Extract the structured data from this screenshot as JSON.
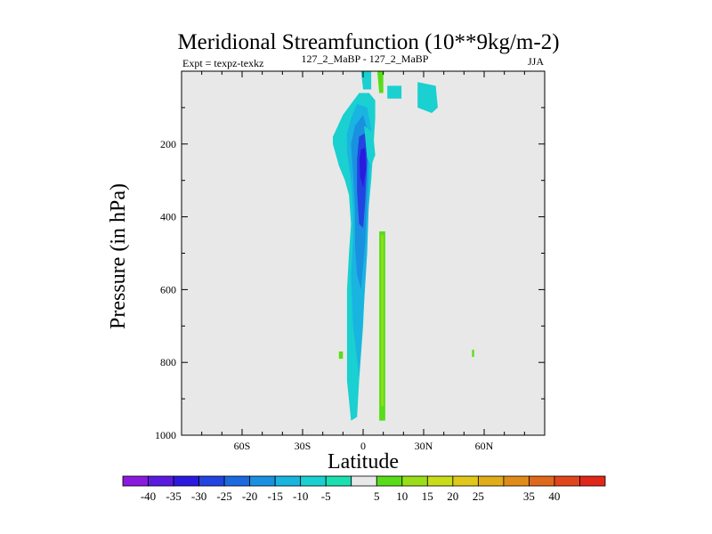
{
  "chart_data": {
    "type": "heatmap",
    "title": "Meridional Streamfunction (10**9kg/m-2)",
    "subtitle_left": "Expt = texpz-texkz",
    "subtitle_center": "127_2_MaBP - 127_2_MaBP",
    "subtitle_right": "JJA",
    "xlabel": "Latitude",
    "ylabel": "Pressure (in hPa)",
    "xlim": [
      -90,
      90
    ],
    "ylim": [
      1000,
      0
    ],
    "x_ticks": [
      {
        "value": -60,
        "label": "60S"
      },
      {
        "value": -30,
        "label": "30S"
      },
      {
        "value": 0,
        "label": "0"
      },
      {
        "value": 30,
        "label": "30N"
      },
      {
        "value": 60,
        "label": "60N"
      }
    ],
    "y_ticks": [
      {
        "value": 200,
        "label": "200"
      },
      {
        "value": 400,
        "label": "400"
      },
      {
        "value": 600,
        "label": "600"
      },
      {
        "value": 800,
        "label": "800"
      },
      {
        "value": 1000,
        "label": "1000"
      }
    ],
    "background_color": "#e8e8e8",
    "colorbar": {
      "labels": [
        "-40",
        "-35",
        "-30",
        "-25",
        "-20",
        "-15",
        "-10",
        "-5",
        "5",
        "10",
        "15",
        "20",
        "25",
        "35",
        "40"
      ],
      "colors": [
        "#8a1ae0",
        "#5a1ae0",
        "#2a1ae0",
        "#2244e0",
        "#1a6ae0",
        "#1a90e0",
        "#1ab4e0",
        "#1ad0d0",
        "#1ae0b0",
        "#e8e8e8",
        "#58dc1a",
        "#9ade1a",
        "#c8dc1a",
        "#e0c81a",
        "#e0ac1a",
        "#e08a1a",
        "#e0681a",
        "#e0461a",
        "#e0281a"
      ]
    },
    "regions": [
      {
        "level": "-10",
        "color": "#1ad0d0",
        "points": [
          [
            -15,
            200
          ],
          [
            -15,
            180
          ],
          [
            -10,
            120
          ],
          [
            -6,
            90
          ],
          [
            -2,
            60
          ],
          [
            3,
            60
          ],
          [
            6,
            80
          ],
          [
            6,
            130
          ],
          [
            4,
            300
          ],
          [
            2,
            420
          ],
          [
            1,
            560
          ],
          [
            0,
            700
          ],
          [
            -2,
            850
          ],
          [
            -3,
            950
          ],
          [
            -6,
            960
          ],
          [
            -8,
            850
          ],
          [
            -8,
            600
          ],
          [
            -7,
            500
          ],
          [
            -6,
            420
          ],
          [
            -7,
            340
          ],
          [
            -9,
            300
          ],
          [
            -12,
            260
          ]
        ]
      },
      {
        "level": "-15",
        "color": "#1ab4e0",
        "points": [
          [
            -6,
            130
          ],
          [
            -3,
            90
          ],
          [
            2,
            100
          ],
          [
            4,
            160
          ],
          [
            3,
            330
          ],
          [
            2,
            500
          ],
          [
            0,
            680
          ],
          [
            -2,
            840
          ],
          [
            -5,
            700
          ],
          [
            -6,
            560
          ],
          [
            -5,
            460
          ],
          [
            -5,
            380
          ],
          [
            -6,
            300
          ],
          [
            -8,
            220
          ],
          [
            -8,
            170
          ]
        ]
      },
      {
        "level": "-20",
        "color": "#1a90e0",
        "points": [
          [
            -4,
            150
          ],
          [
            0,
            120
          ],
          [
            3,
            180
          ],
          [
            2,
            340
          ],
          [
            1,
            470
          ],
          [
            -1,
            600
          ],
          [
            -3,
            560
          ],
          [
            -4,
            480
          ],
          [
            -4,
            380
          ],
          [
            -5,
            280
          ],
          [
            -6,
            200
          ]
        ]
      },
      {
        "level": "-25",
        "color": "#2244e0",
        "points": [
          [
            -2,
            180
          ],
          [
            1,
            170
          ],
          [
            2,
            240
          ],
          [
            1,
            360
          ],
          [
            0,
            430
          ],
          [
            -2,
            420
          ],
          [
            -3,
            330
          ],
          [
            -3,
            240
          ]
        ]
      },
      {
        "level": "-30",
        "color": "#2a1ae0",
        "points": [
          [
            -1,
            215
          ],
          [
            1,
            210
          ],
          [
            1.5,
            270
          ],
          [
            0,
            320
          ],
          [
            -1.5,
            290
          ],
          [
            -1.8,
            240
          ]
        ]
      },
      {
        "level": "-10",
        "color": "#1ad0d0",
        "points": [
          [
            -1,
            0
          ],
          [
            4,
            0
          ],
          [
            4,
            50
          ],
          [
            0,
            50
          ]
        ]
      },
      {
        "level": "5",
        "color": "#58dc1a",
        "points": [
          [
            7,
            0
          ],
          [
            10,
            0
          ],
          [
            10,
            60
          ],
          [
            8,
            60
          ]
        ]
      },
      {
        "level": "5",
        "color": "#58dc1a",
        "points": [
          [
            8,
            440
          ],
          [
            11,
            440
          ],
          [
            11,
            960
          ],
          [
            8,
            960
          ]
        ]
      },
      {
        "level": "10",
        "color": "#9ade1a",
        "points": [
          [
            9,
            450
          ],
          [
            10,
            450
          ],
          [
            10,
            920
          ],
          [
            9,
            920
          ]
        ]
      },
      {
        "level": "-10",
        "color": "#1ad0d0",
        "points": [
          [
            27,
            30
          ],
          [
            36,
            40
          ],
          [
            37,
            100
          ],
          [
            34,
            115
          ],
          [
            27,
            100
          ]
        ]
      },
      {
        "level": "-10",
        "color": "#1ad0d0",
        "points": [
          [
            12,
            40
          ],
          [
            19,
            40
          ],
          [
            19,
            75
          ],
          [
            12,
            75
          ]
        ]
      },
      {
        "level": "-10",
        "color": "#1ad0d0",
        "points": [
          [
            0.5,
            150
          ],
          [
            5,
            170
          ],
          [
            6,
            230
          ],
          [
            4,
            260
          ],
          [
            2,
            240
          ]
        ]
      },
      {
        "level": "5",
        "color": "#58dc1a",
        "points": [
          [
            -12,
            770
          ],
          [
            -10,
            770
          ],
          [
            -10,
            790
          ],
          [
            -12,
            790
          ]
        ]
      },
      {
        "level": "5",
        "color": "#58dc1a",
        "points": [
          [
            54,
            765
          ],
          [
            55,
            765
          ],
          [
            55,
            785
          ],
          [
            54,
            785
          ]
        ]
      }
    ]
  }
}
